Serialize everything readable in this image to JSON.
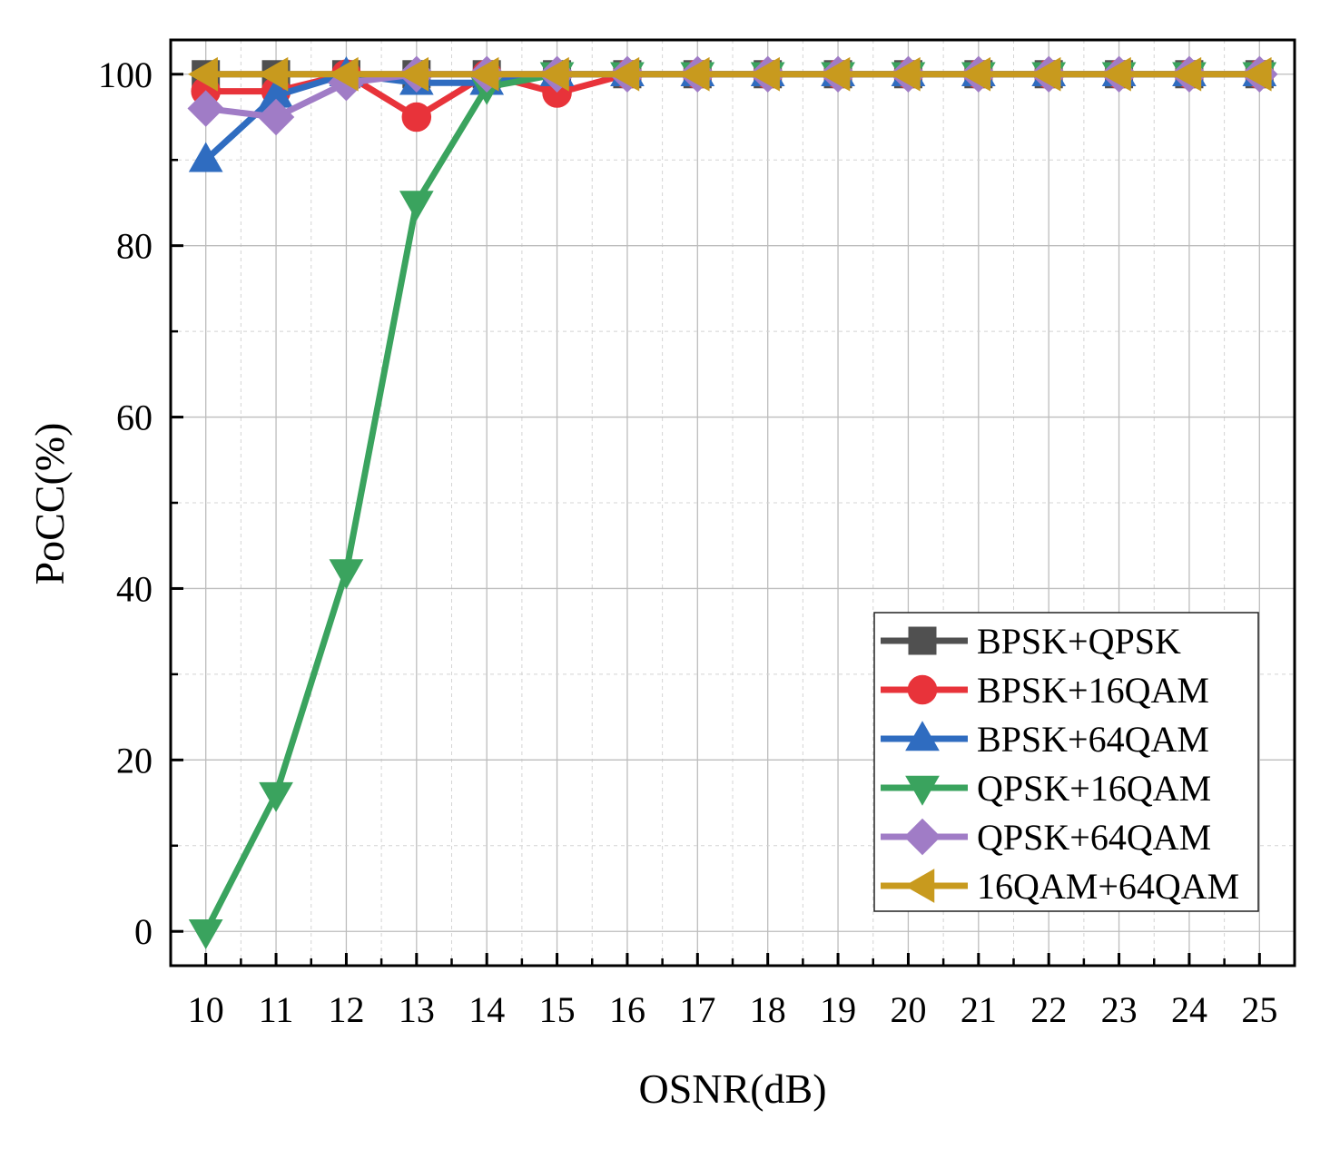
{
  "chart_data": {
    "type": "line",
    "title": "",
    "xlabel": "OSNR(dB)",
    "ylabel": "PoCC(%)",
    "x": [
      10,
      11,
      12,
      13,
      14,
      15,
      16,
      17,
      18,
      19,
      20,
      21,
      22,
      23,
      24,
      25
    ],
    "xlim": [
      9.5,
      25.5
    ],
    "ylim": [
      -4,
      104
    ],
    "xticks": [
      "10",
      "11",
      "12",
      "13",
      "14",
      "15",
      "16",
      "17",
      "18",
      "19",
      "20",
      "21",
      "22",
      "23",
      "24",
      "25"
    ],
    "yticks": [
      "0",
      "20",
      "40",
      "60",
      "80",
      "100"
    ],
    "grid": true,
    "legend_position": "lower-right",
    "series": [
      {
        "name": "BPSK+QPSK",
        "color": "#505050",
        "marker": "square",
        "values": [
          100,
          100,
          100,
          100,
          100,
          100,
          100,
          100,
          100,
          100,
          100,
          100,
          100,
          100,
          100,
          100
        ]
      },
      {
        "name": "BPSK+16QAM",
        "color": "#e8333a",
        "marker": "circle",
        "values": [
          98,
          98,
          100,
          95,
          100,
          97.8,
          100,
          100,
          100,
          100,
          100,
          100,
          100,
          100,
          100,
          100
        ]
      },
      {
        "name": "BPSK+64QAM",
        "color": "#2f6cc0",
        "marker": "triangle-up",
        "values": [
          90,
          97.5,
          100,
          99,
          99,
          100,
          100,
          100,
          100,
          100,
          100,
          100,
          100,
          100,
          100,
          100
        ]
      },
      {
        "name": "QPSK+16QAM",
        "color": "#3aa35e",
        "marker": "triangle-down",
        "values": [
          0,
          16,
          42,
          85,
          98.5,
          100,
          100,
          100,
          100,
          100,
          100,
          100,
          100,
          100,
          100,
          100
        ]
      },
      {
        "name": "QPSK+64QAM",
        "color": "#a07cc6",
        "marker": "diamond",
        "values": [
          96,
          95,
          99,
          100,
          100,
          100,
          100,
          100,
          100,
          100,
          100,
          100,
          100,
          100,
          100,
          100
        ]
      },
      {
        "name": "16QAM+64QAM",
        "color": "#c89a1e",
        "marker": "triangle-left",
        "values": [
          100,
          100,
          100,
          100,
          100,
          100,
          100,
          100,
          100,
          100,
          100,
          100,
          100,
          100,
          100,
          100
        ]
      }
    ]
  }
}
